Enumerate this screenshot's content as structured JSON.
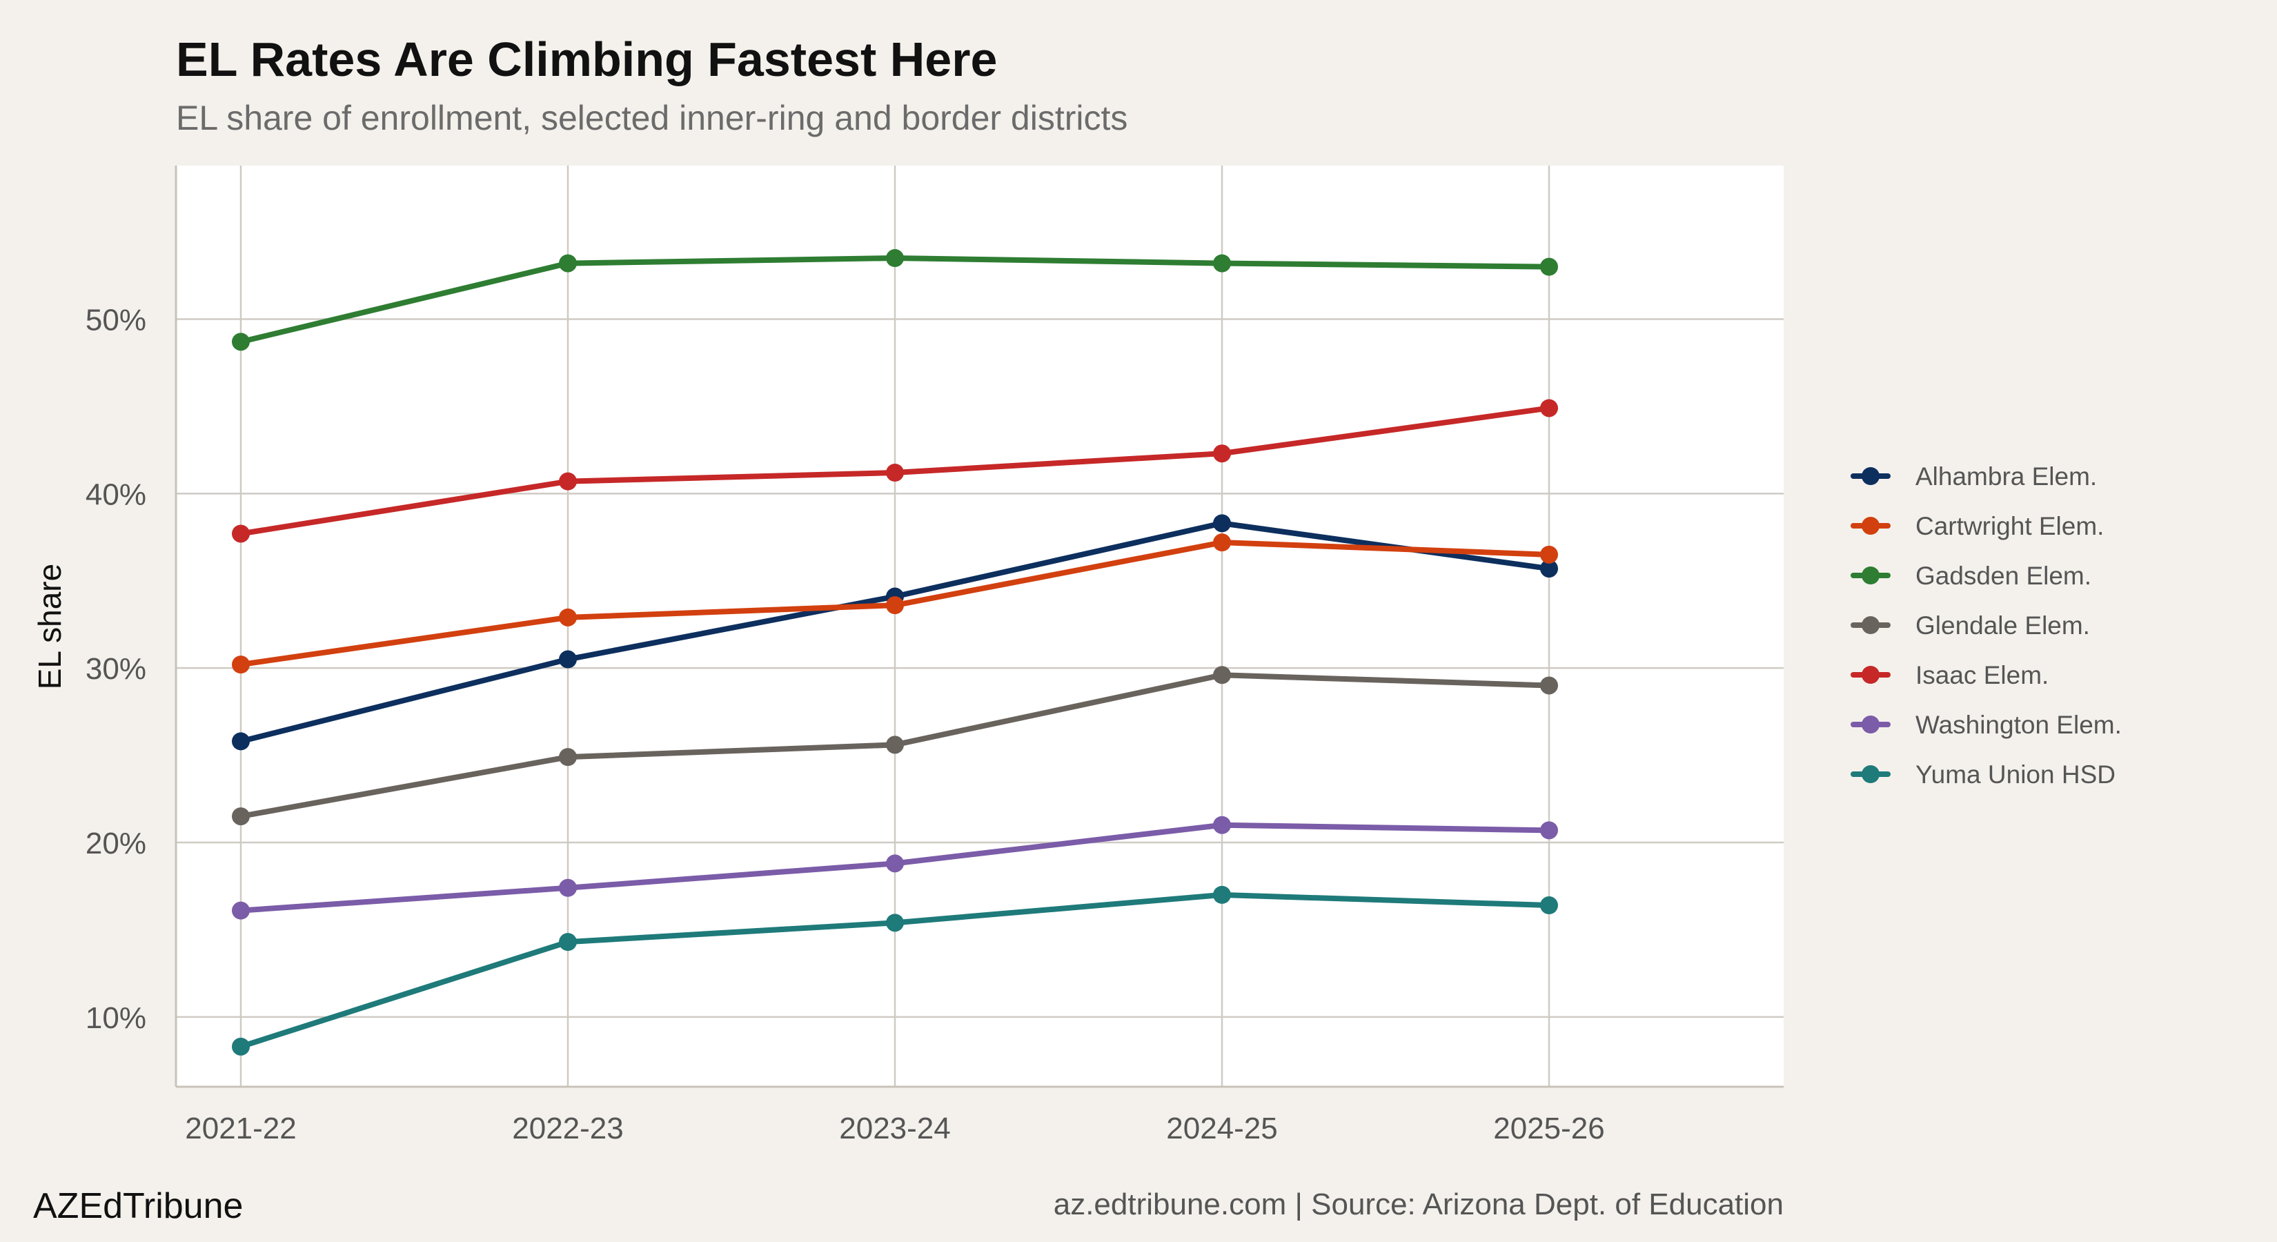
{
  "chart_data": {
    "type": "line",
    "title": "EL Rates Are Climbing Fastest Here",
    "subtitle": "EL share of enrollment, selected inner-ring and border districts",
    "xlabel": "",
    "ylabel": "EL share",
    "categories": [
      "2021-22",
      "2022-23",
      "2023-24",
      "2024-25",
      "2025-26"
    ],
    "ylim": [
      6,
      58.8
    ],
    "yticks": [
      10,
      20,
      30,
      40,
      50
    ],
    "ytick_labels": [
      "10%",
      "20%",
      "30%",
      "40%",
      "50%"
    ],
    "grid": true,
    "legend_position": "right",
    "series": [
      {
        "name": "Alhambra Elem.",
        "color": "#0d2f5e",
        "values": [
          25.8,
          30.5,
          34.1,
          38.3,
          35.7
        ]
      },
      {
        "name": "Cartwright Elem.",
        "color": "#d2400f",
        "values": [
          30.2,
          32.9,
          33.6,
          37.2,
          36.5
        ]
      },
      {
        "name": "Gadsden Elem.",
        "color": "#2e7d32",
        "values": [
          48.7,
          53.2,
          53.5,
          53.2,
          53.0
        ]
      },
      {
        "name": "Glendale Elem.",
        "color": "#69635d",
        "values": [
          21.5,
          24.9,
          25.6,
          29.6,
          29.0
        ]
      },
      {
        "name": "Isaac Elem.",
        "color": "#c62828",
        "values": [
          37.7,
          40.7,
          41.2,
          42.3,
          44.9
        ]
      },
      {
        "name": "Washington Elem.",
        "color": "#7b5ca8",
        "values": [
          16.1,
          17.4,
          18.8,
          21.0,
          20.7
        ]
      },
      {
        "name": "Yuma Union HSD",
        "color": "#1f7a7a",
        "values": [
          8.3,
          14.3,
          15.4,
          17.0,
          16.4
        ]
      }
    ]
  },
  "footer": {
    "brand": "AZEdTribune",
    "credit": "az.edtribune.com | Source: Arizona Dept. of Education"
  },
  "style": {
    "background": "#f4f1ec",
    "panel": "#ffffff",
    "grid": "#cfcac3"
  }
}
